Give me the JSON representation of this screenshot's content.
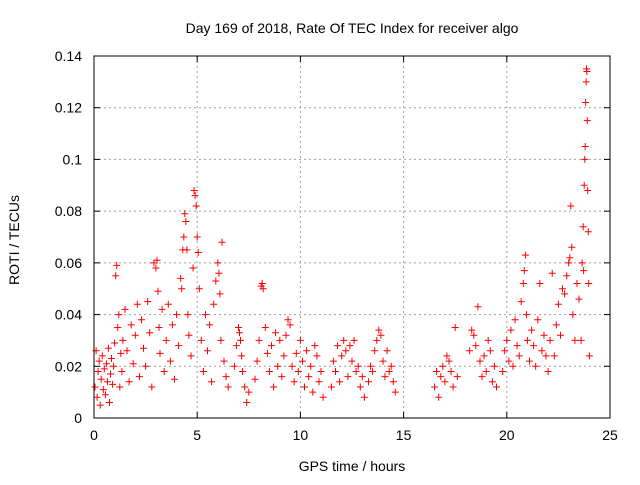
{
  "chart_data": {
    "type": "scatter",
    "title": "Day 169 of 2018, Rate Of TEC Index for receiver algo",
    "xlabel": "GPS time / hours",
    "ylabel": "ROTI / TECUs",
    "xlim": [
      0,
      25
    ],
    "ylim": [
      0,
      0.14
    ],
    "x_ticks": [
      "0",
      "5",
      "10",
      "15",
      "20",
      "25"
    ],
    "y_ticks": [
      "0",
      "0.02",
      "0.04",
      "0.06",
      "0.08",
      "0.1",
      "0.12",
      "0.14"
    ],
    "x_tick_values": [
      0,
      5,
      10,
      15,
      20,
      25
    ],
    "y_tick_values": [
      0,
      0.02,
      0.04,
      0.06,
      0.08,
      0.1,
      0.12,
      0.14
    ],
    "grid": true,
    "marker": "plus",
    "color": "#ff0000",
    "series": [
      {
        "values_note": "",
        "points": [
          [
            0.05,
            0.012
          ],
          [
            0.1,
            0.026
          ],
          [
            0.15,
            0.008
          ],
          [
            0.2,
            0.018
          ],
          [
            0.25,
            0.022
          ],
          [
            0.3,
            0.005
          ],
          [
            0.35,
            0.015
          ],
          [
            0.4,
            0.024
          ],
          [
            0.45,
            0.011
          ],
          [
            0.5,
            0.019
          ],
          [
            0.55,
            0.009
          ],
          [
            0.6,
            0.021
          ],
          [
            0.65,
            0.014
          ],
          [
            0.7,
            0.027
          ],
          [
            0.75,
            0.006
          ],
          [
            0.8,
            0.017
          ],
          [
            0.85,
            0.023
          ],
          [
            0.9,
            0.013
          ],
          [
            0.95,
            0.02
          ],
          [
            1.0,
            0.029
          ],
          [
            1.05,
            0.055
          ],
          [
            1.1,
            0.059
          ],
          [
            1.15,
            0.035
          ],
          [
            1.2,
            0.04
          ],
          [
            1.25,
            0.012
          ],
          [
            1.3,
            0.025
          ],
          [
            1.35,
            0.018
          ],
          [
            1.4,
            0.03
          ],
          [
            1.5,
            0.042
          ],
          [
            1.6,
            0.026
          ],
          [
            1.7,
            0.014
          ],
          [
            1.8,
            0.036
          ],
          [
            1.9,
            0.021
          ],
          [
            2.0,
            0.032
          ],
          [
            2.1,
            0.044
          ],
          [
            2.2,
            0.016
          ],
          [
            2.3,
            0.038
          ],
          [
            2.4,
            0.027
          ],
          [
            2.5,
            0.02
          ],
          [
            2.6,
            0.045
          ],
          [
            2.7,
            0.033
          ],
          [
            2.8,
            0.012
          ],
          [
            2.9,
            0.06
          ],
          [
            3.0,
            0.058
          ],
          [
            3.05,
            0.061
          ],
          [
            3.1,
            0.049
          ],
          [
            3.15,
            0.035
          ],
          [
            3.2,
            0.025
          ],
          [
            3.3,
            0.042
          ],
          [
            3.4,
            0.018
          ],
          [
            3.5,
            0.03
          ],
          [
            3.6,
            0.044
          ],
          [
            3.7,
            0.022
          ],
          [
            3.8,
            0.036
          ],
          [
            3.9,
            0.015
          ],
          [
            4.0,
            0.04
          ],
          [
            4.1,
            0.028
          ],
          [
            4.2,
            0.054
          ],
          [
            4.25,
            0.05
          ],
          [
            4.3,
            0.065
          ],
          [
            4.35,
            0.07
          ],
          [
            4.4,
            0.079
          ],
          [
            4.45,
            0.076
          ],
          [
            4.5,
            0.065
          ],
          [
            4.55,
            0.04
          ],
          [
            4.6,
            0.032
          ],
          [
            4.7,
            0.024
          ],
          [
            4.8,
            0.058
          ],
          [
            4.85,
            0.088
          ],
          [
            4.9,
            0.086
          ],
          [
            4.95,
            0.082
          ],
          [
            5.0,
            0.07
          ],
          [
            5.05,
            0.064
          ],
          [
            5.1,
            0.05
          ],
          [
            5.2,
            0.03
          ],
          [
            5.3,
            0.018
          ],
          [
            5.4,
            0.04
          ],
          [
            5.5,
            0.026
          ],
          [
            5.6,
            0.036
          ],
          [
            5.7,
            0.014
          ],
          [
            5.8,
            0.044
          ],
          [
            5.9,
            0.053
          ],
          [
            6.0,
            0.06
          ],
          [
            6.05,
            0.056
          ],
          [
            6.1,
            0.048
          ],
          [
            6.15,
            0.03
          ],
          [
            6.2,
            0.068
          ],
          [
            6.3,
            0.022
          ],
          [
            6.4,
            0.016
          ],
          [
            6.5,
            0.012
          ],
          [
            6.8,
            0.02
          ],
          [
            6.9,
            0.028
          ],
          [
            7.0,
            0.035
          ],
          [
            7.05,
            0.033
          ],
          [
            7.1,
            0.03
          ],
          [
            7.15,
            0.024
          ],
          [
            7.2,
            0.018
          ],
          [
            7.3,
            0.012
          ],
          [
            7.4,
            0.006
          ],
          [
            7.5,
            0.01
          ],
          [
            7.8,
            0.015
          ],
          [
            7.9,
            0.022
          ],
          [
            8.0,
            0.03
          ],
          [
            8.1,
            0.051
          ],
          [
            8.15,
            0.052
          ],
          [
            8.2,
            0.05
          ],
          [
            8.3,
            0.035
          ],
          [
            8.4,
            0.025
          ],
          [
            8.5,
            0.018
          ],
          [
            8.6,
            0.028
          ],
          [
            8.7,
            0.012
          ],
          [
            8.8,
            0.033
          ],
          [
            8.9,
            0.02
          ],
          [
            9.0,
            0.03
          ],
          [
            9.1,
            0.016
          ],
          [
            9.2,
            0.024
          ],
          [
            9.3,
            0.032
          ],
          [
            9.4,
            0.038
          ],
          [
            9.5,
            0.036
          ],
          [
            9.6,
            0.02
          ],
          [
            9.7,
            0.014
          ],
          [
            9.8,
            0.025
          ],
          [
            9.9,
            0.018
          ],
          [
            10.0,
            0.03
          ],
          [
            10.1,
            0.022
          ],
          [
            10.2,
            0.012
          ],
          [
            10.3,
            0.026
          ],
          [
            10.4,
            0.016
          ],
          [
            10.5,
            0.02
          ],
          [
            10.6,
            0.01
          ],
          [
            10.7,
            0.028
          ],
          [
            10.8,
            0.024
          ],
          [
            10.9,
            0.014
          ],
          [
            11.0,
            0.018
          ],
          [
            11.1,
            0.008
          ],
          [
            11.5,
            0.012
          ],
          [
            11.6,
            0.022
          ],
          [
            11.7,
            0.018
          ],
          [
            11.8,
            0.028
          ],
          [
            11.9,
            0.014
          ],
          [
            12.0,
            0.024
          ],
          [
            12.1,
            0.03
          ],
          [
            12.2,
            0.026
          ],
          [
            12.3,
            0.016
          ],
          [
            12.4,
            0.028
          ],
          [
            12.5,
            0.022
          ],
          [
            12.6,
            0.03
          ],
          [
            12.7,
            0.018
          ],
          [
            12.8,
            0.02
          ],
          [
            12.9,
            0.012
          ],
          [
            13.0,
            0.016
          ],
          [
            13.1,
            0.008
          ],
          [
            13.3,
            0.014
          ],
          [
            13.4,
            0.02
          ],
          [
            13.5,
            0.018
          ],
          [
            13.6,
            0.026
          ],
          [
            13.7,
            0.03
          ],
          [
            13.8,
            0.034
          ],
          [
            13.9,
            0.032
          ],
          [
            14.0,
            0.022
          ],
          [
            14.1,
            0.016
          ],
          [
            14.2,
            0.026
          ],
          [
            14.3,
            0.018
          ],
          [
            14.4,
            0.02
          ],
          [
            14.5,
            0.014
          ],
          [
            14.6,
            0.01
          ],
          [
            16.5,
            0.012
          ],
          [
            16.6,
            0.018
          ],
          [
            16.7,
            0.008
          ],
          [
            16.8,
            0.016
          ],
          [
            16.9,
            0.02
          ],
          [
            17.0,
            0.014
          ],
          [
            17.1,
            0.024
          ],
          [
            17.2,
            0.022
          ],
          [
            17.3,
            0.018
          ],
          [
            17.4,
            0.012
          ],
          [
            17.5,
            0.035
          ],
          [
            17.6,
            0.016
          ],
          [
            18.2,
            0.026
          ],
          [
            18.3,
            0.034
          ],
          [
            18.4,
            0.032
          ],
          [
            18.5,
            0.028
          ],
          [
            18.6,
            0.043
          ],
          [
            18.7,
            0.022
          ],
          [
            18.8,
            0.016
          ],
          [
            18.9,
            0.024
          ],
          [
            19.0,
            0.018
          ],
          [
            19.1,
            0.03
          ],
          [
            19.2,
            0.026
          ],
          [
            19.3,
            0.014
          ],
          [
            19.4,
            0.02
          ],
          [
            19.5,
            0.012
          ],
          [
            19.8,
            0.018
          ],
          [
            19.9,
            0.026
          ],
          [
            20.0,
            0.03
          ],
          [
            20.1,
            0.022
          ],
          [
            20.2,
            0.034
          ],
          [
            20.3,
            0.02
          ],
          [
            20.4,
            0.038
          ],
          [
            20.5,
            0.028
          ],
          [
            20.6,
            0.024
          ],
          [
            20.7,
            0.045
          ],
          [
            20.8,
            0.052
          ],
          [
            20.85,
            0.057
          ],
          [
            20.9,
            0.063
          ],
          [
            20.95,
            0.04
          ],
          [
            21.0,
            0.03
          ],
          [
            21.1,
            0.022
          ],
          [
            21.2,
            0.034
          ],
          [
            21.3,
            0.028
          ],
          [
            21.4,
            0.02
          ],
          [
            21.5,
            0.038
          ],
          [
            21.6,
            0.052
          ],
          [
            21.7,
            0.026
          ],
          [
            21.8,
            0.032
          ],
          [
            21.9,
            0.024
          ],
          [
            22.0,
            0.018
          ],
          [
            22.1,
            0.03
          ],
          [
            22.2,
            0.056
          ],
          [
            22.3,
            0.024
          ],
          [
            22.4,
            0.036
          ],
          [
            22.5,
            0.044
          ],
          [
            22.6,
            0.032
          ],
          [
            22.7,
            0.05
          ],
          [
            22.8,
            0.048
          ],
          [
            22.9,
            0.055
          ],
          [
            23.0,
            0.06
          ],
          [
            23.05,
            0.062
          ],
          [
            23.1,
            0.082
          ],
          [
            23.15,
            0.066
          ],
          [
            23.2,
            0.04
          ],
          [
            23.3,
            0.03
          ],
          [
            23.4,
            0.052
          ],
          [
            23.5,
            0.046
          ],
          [
            23.6,
            0.03
          ],
          [
            23.65,
            0.06
          ],
          [
            23.7,
            0.074
          ],
          [
            23.72,
            0.057
          ],
          [
            23.75,
            0.09
          ],
          [
            23.78,
            0.1
          ],
          [
            23.8,
            0.105
          ],
          [
            23.82,
            0.122
          ],
          [
            23.84,
            0.13
          ],
          [
            23.86,
            0.135
          ],
          [
            23.88,
            0.134
          ],
          [
            23.9,
            0.115
          ],
          [
            23.92,
            0.088
          ],
          [
            23.95,
            0.072
          ],
          [
            23.97,
            0.052
          ],
          [
            24.0,
            0.024
          ]
        ]
      }
    ]
  }
}
